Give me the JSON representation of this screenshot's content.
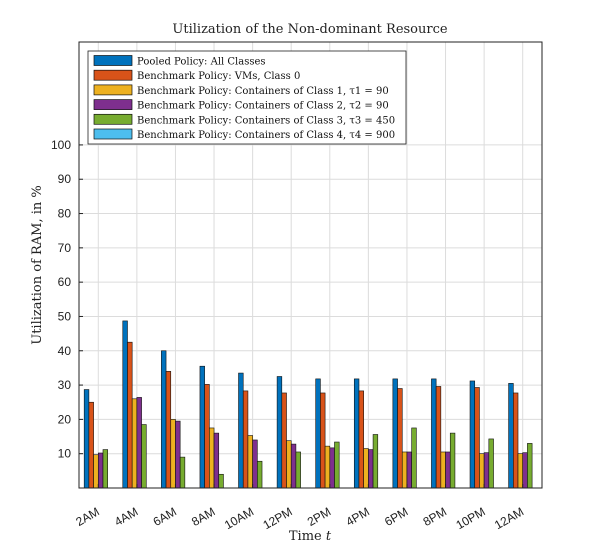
{
  "chart_data": {
    "type": "bar",
    "title": "Utilization of the Non-dominant Resource",
    "xlabel": "Time t",
    "ylabel": "Utilization of RAM, in %",
    "categories": [
      "2AM",
      "4AM",
      "6AM",
      "8AM",
      "10AM",
      "12PM",
      "2PM",
      "4PM",
      "6PM",
      "8PM",
      "10PM",
      "12AM"
    ],
    "ylim": [
      0,
      130
    ],
    "yticks": [
      10,
      20,
      30,
      40,
      50,
      60,
      70,
      80,
      90,
      100
    ],
    "grid": true,
    "legend_position": "top-left",
    "series": [
      {
        "name": "Pooled Policy: All Classes",
        "color": "#0072BD",
        "values": [
          28.7,
          48.7,
          40.0,
          35.5,
          33.5,
          32.5,
          31.8,
          31.8,
          31.8,
          31.8,
          31.2,
          30.5
        ]
      },
      {
        "name": "Benchmark Policy: VMs, Class 0",
        "color": "#D95319",
        "values": [
          25.0,
          42.5,
          34.0,
          30.2,
          28.3,
          27.7,
          27.7,
          28.3,
          29.0,
          29.6,
          29.3,
          27.7
        ]
      },
      {
        "name": "Benchmark Policy: Containers of Class 1, τ1 = 90",
        "color": "#EDB120",
        "values": [
          9.7,
          26.0,
          20.0,
          17.5,
          15.3,
          13.8,
          12.2,
          11.5,
          10.5,
          10.5,
          10.0,
          10.0
        ]
      },
      {
        "name": "Benchmark Policy: Containers of Class 2, τ2 = 90",
        "color": "#7E2F8E",
        "values": [
          10.2,
          26.4,
          19.5,
          16.0,
          14.0,
          12.8,
          11.7,
          11.2,
          10.5,
          10.5,
          10.3,
          10.3
        ]
      },
      {
        "name": "Benchmark Policy: Containers of Class 3, τ3 = 450",
        "color": "#77AC30",
        "values": [
          11.2,
          18.5,
          9.0,
          4.0,
          7.8,
          10.5,
          13.4,
          15.6,
          17.5,
          16.0,
          14.3,
          13.0
        ]
      },
      {
        "name": "Benchmark Policy: Containers of Class 4, τ4 = 900",
        "color": "#4DBEEE",
        "values": [
          0,
          0,
          0,
          0,
          0,
          0,
          0,
          0,
          0,
          0,
          0,
          0
        ]
      }
    ]
  }
}
